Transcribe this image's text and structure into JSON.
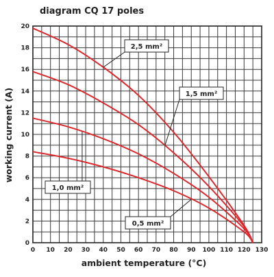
{
  "chart_data": {
    "type": "line",
    "title": "diagram CQ 17 poles",
    "xlabel": "ambient temperature (°C)",
    "ylabel": "working current (A)",
    "xlim": [
      0,
      130
    ],
    "ylim": [
      0,
      20
    ],
    "x_ticks": [
      "0",
      "10",
      "20",
      "30",
      "40",
      "50",
      "60",
      "70",
      "80",
      "90",
      "100",
      "110",
      "120",
      "130"
    ],
    "y_ticks": [
      "0",
      "2",
      "4",
      "6",
      "8",
      "10",
      "12",
      "14",
      "16",
      "18",
      "20"
    ],
    "grid": "on",
    "curve_color": "#e0282c",
    "series": [
      {
        "name": "2,5 mm²",
        "x": [
          0,
          20,
          40,
          60,
          80,
          100,
          120,
          125
        ],
        "y": [
          19.8,
          18.3,
          16.2,
          13.6,
          10.2,
          6.1,
          1.6,
          0
        ]
      },
      {
        "name": "1,5 mm²",
        "x": [
          0,
          20,
          40,
          60,
          80,
          100,
          120,
          125
        ],
        "y": [
          15.8,
          14.6,
          12.9,
          10.9,
          8.3,
          5.2,
          1.5,
          0
        ]
      },
      {
        "name": "1,0 mm²",
        "x": [
          0,
          20,
          40,
          60,
          80,
          100,
          120,
          125
        ],
        "y": [
          11.5,
          10.7,
          9.6,
          8.2,
          6.4,
          4.2,
          1.3,
          0
        ]
      },
      {
        "name": "0,5 mm²",
        "x": [
          0,
          20,
          40,
          60,
          80,
          100,
          120,
          125
        ],
        "y": [
          8.4,
          7.8,
          7.0,
          6.0,
          4.8,
          3.2,
          1.0,
          0
        ]
      }
    ]
  }
}
